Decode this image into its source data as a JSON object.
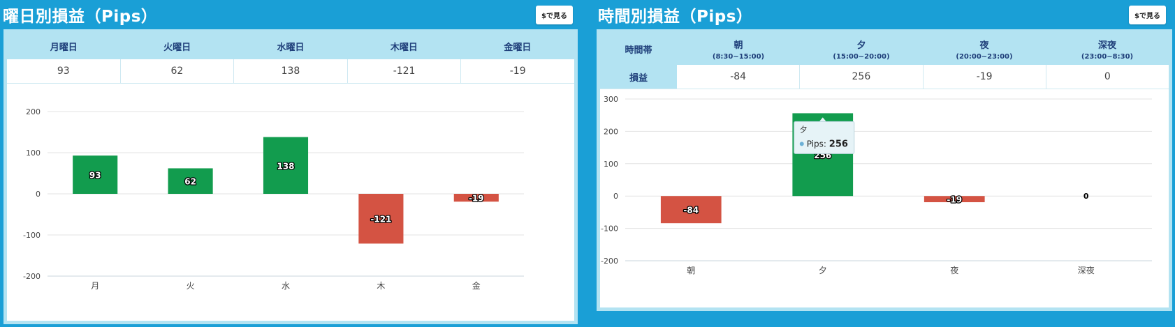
{
  "weekday": {
    "title": "曜日別損益（Pips）",
    "button_label": "$で見る",
    "headers": [
      "月曜日",
      "火曜日",
      "水曜日",
      "木曜日",
      "金曜日"
    ],
    "values": [
      "93",
      "62",
      "138",
      "-121",
      "-19"
    ]
  },
  "time": {
    "title": "時間別損益（Pips）",
    "button_label": "$で見る",
    "row_header_top": "時間帯",
    "row_header_bottom": "損益",
    "headers": [
      {
        "label": "朝",
        "range": "(8:30~15:00)"
      },
      {
        "label": "夕",
        "range": "(15:00~20:00)"
      },
      {
        "label": "夜",
        "range": "(20:00~23:00)"
      },
      {
        "label": "深夜",
        "range": "(23:00~8:30)"
      }
    ],
    "values": [
      "-84",
      "256",
      "-19",
      "0"
    ]
  },
  "colors": {
    "positive": "#129c4e",
    "negative": "#d45343",
    "header_bg": "#b3e3f2",
    "page_bg": "#1a9fd6"
  },
  "chart_data": [
    {
      "type": "bar",
      "categories": [
        "月",
        "火",
        "水",
        "木",
        "金"
      ],
      "values": [
        93,
        62,
        138,
        -121,
        -19
      ],
      "ylim": [
        -200,
        200
      ],
      "yticks": [
        200,
        100,
        0,
        -100,
        -200
      ],
      "grid": true,
      "data_labels": true
    },
    {
      "type": "bar",
      "categories": [
        "朝",
        "夕",
        "夜",
        "深夜"
      ],
      "values": [
        -84,
        256,
        -19,
        0
      ],
      "ylim": [
        -200,
        300
      ],
      "yticks": [
        300,
        200,
        100,
        0,
        -100,
        -200
      ],
      "grid": true,
      "data_labels": true,
      "tooltip": {
        "title": "夕",
        "series": "Pips",
        "value": "256"
      }
    }
  ]
}
